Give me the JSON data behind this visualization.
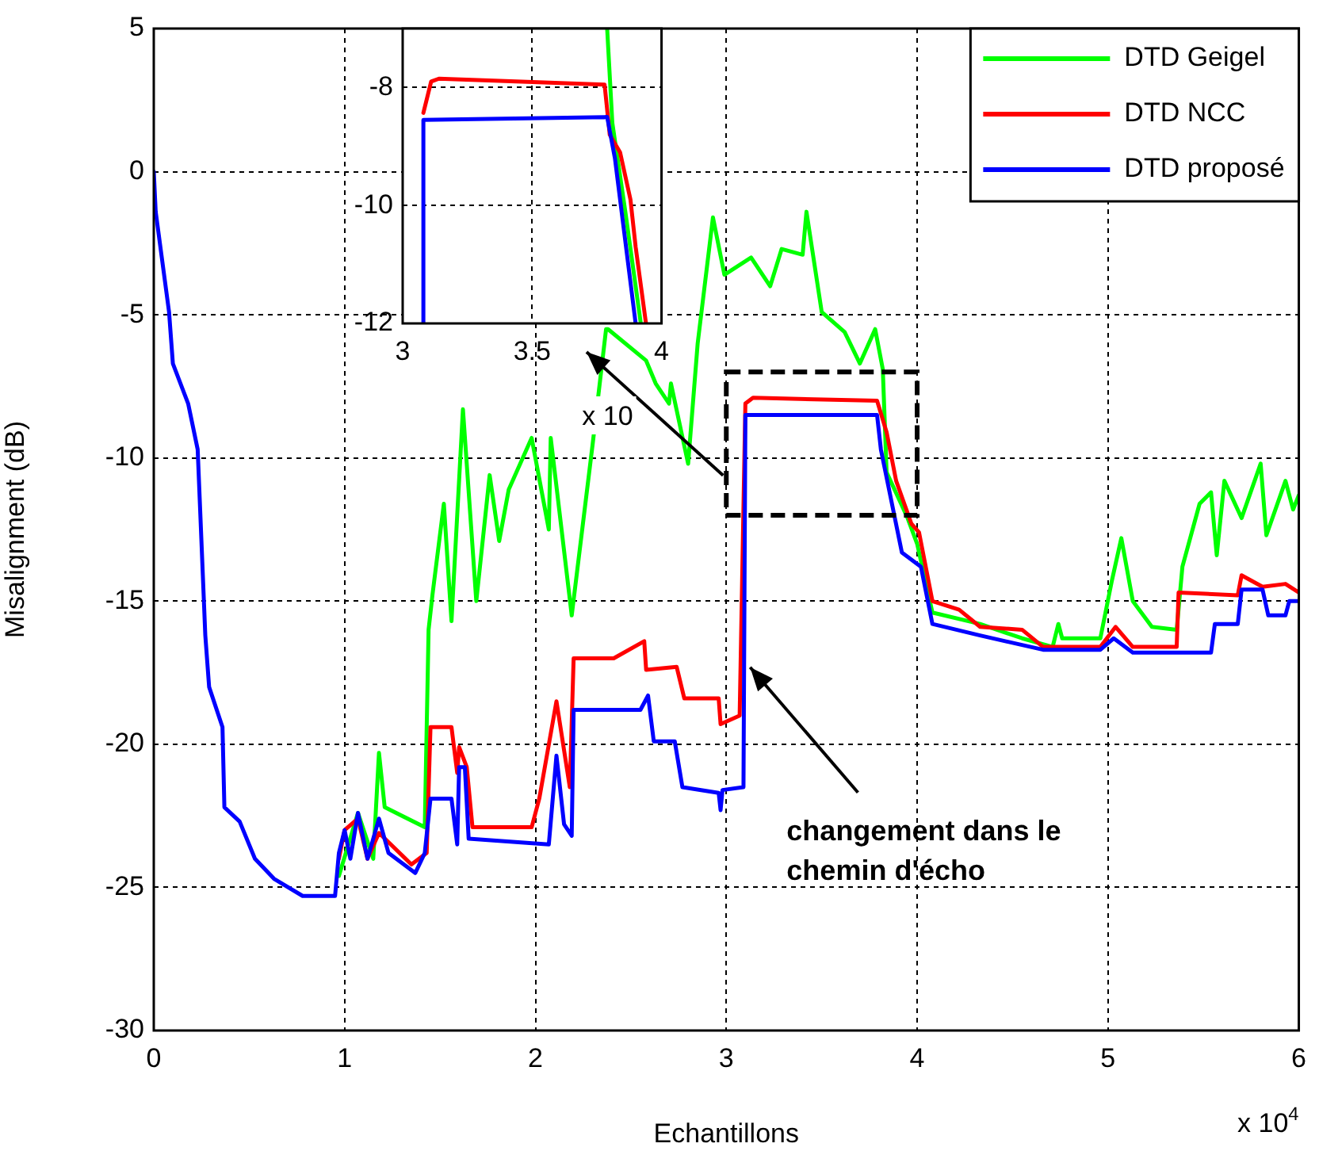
{
  "chart_data": [
    {
      "type": "line",
      "xlabel": "Echantillons",
      "ylabel": "Misalignment (dB)",
      "xlim": [
        0,
        6
      ],
      "ylim": [
        -30,
        5
      ],
      "xticks": [
        0,
        1,
        2,
        3,
        4,
        5,
        6
      ],
      "yticks": [
        -30,
        -25,
        -20,
        -15,
        -10,
        -5,
        0,
        5
      ],
      "grid": true,
      "legend": "top right",
      "marker": "none",
      "annotations": [
        {
          "text": "changement dans le chemin d'écho",
          "x": 3.1,
          "y": -17.2
        },
        "x 10$^{4}$"
      ],
      "series": [
        {
          "name": "DTD Geigel",
          "color": "#00ff00",
          "x": [
            0.97,
            1.07,
            1.15,
            1.18,
            1.21,
            1.42,
            1.44,
            1.46,
            1.52,
            1.56,
            1.62,
            1.69,
            1.76,
            1.81,
            1.86,
            1.98,
            2.07,
            2.08,
            2.19,
            2.3,
            2.37,
            2.38,
            2.58,
            2.63,
            2.7,
            2.71,
            2.8,
            2.85,
            2.93,
            2.99,
            3.13,
            3.23,
            3.29,
            3.4,
            3.42,
            3.5,
            3.62,
            3.7,
            3.78,
            3.82,
            3.84,
            3.95,
            4.0,
            4.08,
            4.33,
            4.55,
            4.71,
            4.74,
            4.76,
            4.96,
            5.02,
            5.07,
            5.13,
            5.23,
            5.36,
            5.39,
            5.48,
            5.54,
            5.57,
            5.61,
            5.7,
            5.8,
            5.83,
            5.93,
            5.97,
            6.0
          ],
          "values": [
            -24.6,
            -22.4,
            -24,
            -20.3,
            -22.2,
            -22.9,
            -16,
            -14.8,
            -11.6,
            -15.7,
            -8.3,
            -15,
            -10.6,
            -12.9,
            -11.1,
            -9.3,
            -12.5,
            -9.3,
            -15.5,
            -9.5,
            -5.5,
            -5.5,
            -6.6,
            -7.4,
            -8.1,
            -7.4,
            -10.2,
            -6,
            -1.6,
            -3.6,
            -3,
            -4,
            -2.7,
            -2.9,
            -1.4,
            -4.9,
            -5.6,
            -6.7,
            -5.5,
            -6.9,
            -10.5,
            -12.1,
            -13,
            -15.4,
            -15.8,
            -16.3,
            -16.6,
            -15.8,
            -16.3,
            -16.3,
            -14.3,
            -12.8,
            -15,
            -15.9,
            -16,
            -13.8,
            -11.6,
            -11.2,
            -13.4,
            -10.8,
            -12.1,
            -10.2,
            -12.7,
            -10.8,
            -11.8,
            -11.3
          ]
        },
        {
          "name": "DTD NCC",
          "color": "#ff0000",
          "x": [
            0.97,
            1.0,
            1.07,
            1.12,
            1.18,
            1.35,
            1.43,
            1.45,
            1.56,
            1.59,
            1.6,
            1.64,
            1.67,
            1.98,
            2.02,
            2.11,
            2.18,
            2.2,
            2.41,
            2.57,
            2.58,
            2.74,
            2.78,
            2.96,
            2.97,
            3.07,
            3.1,
            3.14,
            3.79,
            3.84,
            3.89,
            3.97,
            4.01,
            4.08,
            4.22,
            4.33,
            4.55,
            4.66,
            4.96,
            5.04,
            5.13,
            5.36,
            5.37,
            5.68,
            5.7,
            5.81,
            5.93,
            6.0
          ],
          "values": [
            -24,
            -23,
            -22.6,
            -24,
            -23.1,
            -24.2,
            -23.8,
            -19.4,
            -19.4,
            -21,
            -20.1,
            -20.8,
            -22.9,
            -22.9,
            -21.9,
            -18.5,
            -21.5,
            -17,
            -17,
            -16.4,
            -17.4,
            -17.3,
            -18.4,
            -18.4,
            -19.3,
            -19,
            -8.1,
            -7.9,
            -8,
            -9.1,
            -10.8,
            -12.3,
            -12.6,
            -15,
            -15.3,
            -15.9,
            -16,
            -16.6,
            -16.6,
            -15.9,
            -16.6,
            -16.6,
            -14.7,
            -14.8,
            -14.1,
            -14.5,
            -14.4,
            -14.7
          ]
        },
        {
          "name": "DTD proposé",
          "color": "#0000ff",
          "x": [
            0,
            0.01,
            0.08,
            0.1,
            0.18,
            0.23,
            0.27,
            0.29,
            0.36,
            0.37,
            0.45,
            0.53,
            0.63,
            0.78,
            0.95,
            0.97,
            1.0,
            1.03,
            1.07,
            1.12,
            1.18,
            1.23,
            1.37,
            1.42,
            1.45,
            1.56,
            1.59,
            1.6,
            1.63,
            1.65,
            2.07,
            2.11,
            2.15,
            2.19,
            2.2,
            2.55,
            2.59,
            2.62,
            2.73,
            2.77,
            2.96,
            2.97,
            2.98,
            3.09,
            3.1,
            3.79,
            3.81,
            3.92,
            4.02,
            4.08,
            4.33,
            4.66,
            4.96,
            5.03,
            5.13,
            5.54,
            5.56,
            5.68,
            5.7,
            5.81,
            5.84,
            5.93,
            5.95,
            6.0
          ],
          "values": [
            0,
            -1.4,
            -4.9,
            -6.7,
            -8.1,
            -9.7,
            -16.2,
            -18,
            -19.4,
            -22.2,
            -22.7,
            -24,
            -24.7,
            -25.3,
            -25.3,
            -23.8,
            -23,
            -24,
            -22.4,
            -24,
            -22.6,
            -23.8,
            -24.5,
            -23.8,
            -21.9,
            -21.9,
            -23.5,
            -20.8,
            -20.8,
            -23.3,
            -23.5,
            -20.4,
            -22.8,
            -23.2,
            -18.8,
            -18.8,
            -18.3,
            -19.9,
            -19.9,
            -21.5,
            -21.7,
            -22.3,
            -21.6,
            -21.5,
            -8.5,
            -8.5,
            -9.7,
            -13.3,
            -13.8,
            -15.8,
            -16.2,
            -16.7,
            -16.7,
            -16.3,
            -16.8,
            -16.8,
            -15.8,
            -15.8,
            -14.6,
            -14.6,
            -15.5,
            -15.5,
            -15,
            -15
          ]
        }
      ]
    },
    {
      "type": "line",
      "xlim": [
        3,
        4
      ],
      "ylim": [
        -12,
        -7
      ],
      "xticks": [
        3,
        3.5,
        4
      ],
      "yticks": [
        -12,
        -10,
        -8
      ],
      "grid": true,
      "marker": "none",
      "annotations": [
        "x 10"
      ],
      "series": [
        {
          "color": "#00ff00",
          "x": [
            3.79,
            3.81,
            3.86,
            3.92
          ],
          "values": [
            -7,
            -8.6,
            -10.1,
            -12
          ]
        },
        {
          "color": "#ff0000",
          "x": [
            3.08,
            3.11,
            3.14,
            3.78,
            3.8,
            3.84,
            3.88,
            3.9,
            3.94
          ],
          "values": [
            -8.43,
            -7.9,
            -7.85,
            -7.95,
            -8.8,
            -9.1,
            -9.9,
            -10.7,
            -12
          ]
        },
        {
          "color": "#0000ff",
          "x": [
            3.08,
            3.08,
            3.79,
            3.82,
            3.9
          ],
          "values": [
            -12,
            -8.55,
            -8.5,
            -9.2,
            -12
          ]
        }
      ]
    }
  ]
}
